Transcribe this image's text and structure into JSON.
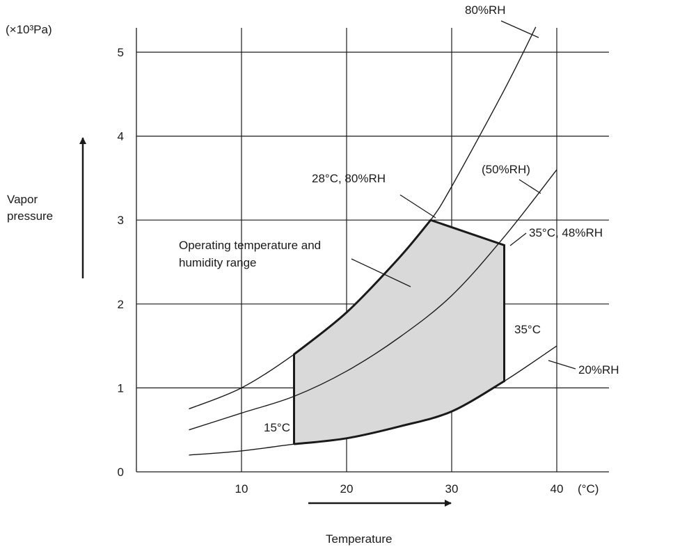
{
  "chart_data": {
    "type": "line",
    "y_unit_label": "(×10³Pa)",
    "x_unit_label": "(°C)",
    "y_axis_label_line1": "Vapor",
    "y_axis_label_line2": "pressure",
    "x_axis_label": "Temperature",
    "x_ticks": [
      "10",
      "20",
      "30",
      "40"
    ],
    "y_ticks": [
      "0",
      "1",
      "2",
      "3",
      "4",
      "5"
    ],
    "xlim": [
      0,
      45
    ],
    "ylim": [
      0,
      5.3
    ],
    "grid": true,
    "series": [
      {
        "name": "80%RH",
        "x": [
          5,
          10,
          15,
          20,
          25,
          28,
          30,
          35,
          38
        ],
        "y": [
          0.75,
          1.0,
          1.4,
          1.9,
          2.55,
          3.0,
          3.4,
          4.55,
          5.3
        ]
      },
      {
        "name": "(50%RH)",
        "x": [
          5,
          10,
          15,
          20,
          25,
          30,
          35,
          40
        ],
        "y": [
          0.5,
          0.7,
          0.9,
          1.2,
          1.6,
          2.1,
          2.8,
          3.6
        ]
      },
      {
        "name": "20%RH",
        "x": [
          5,
          10,
          15,
          20,
          25,
          30,
          35,
          40
        ],
        "y": [
          0.2,
          0.25,
          0.33,
          0.4,
          0.54,
          0.72,
          1.08,
          1.5
        ]
      }
    ],
    "region": {
      "label_line1": "Operating temperature and",
      "label_line2": "humidity range",
      "boundary": [
        [
          15,
          0.33
        ],
        [
          15,
          1.4
        ],
        [
          20,
          1.9
        ],
        [
          25,
          2.55
        ],
        [
          28,
          3.0
        ],
        [
          35,
          2.7
        ],
        [
          35,
          1.08
        ],
        [
          30,
          0.72
        ],
        [
          25,
          0.54
        ],
        [
          20,
          0.4
        ],
        [
          15,
          0.33
        ]
      ],
      "fill_color": "#d9d9d9"
    },
    "annotations": [
      {
        "text": "28°C, 80%RH",
        "x": 28,
        "y": 3.0
      },
      {
        "text": "35°C, 48%RH",
        "x": 35,
        "y": 2.7
      },
      {
        "text": "35°C",
        "x": 35,
        "y": 1.8
      },
      {
        "text": "15°C",
        "x": 15,
        "y": 0.5
      }
    ]
  }
}
